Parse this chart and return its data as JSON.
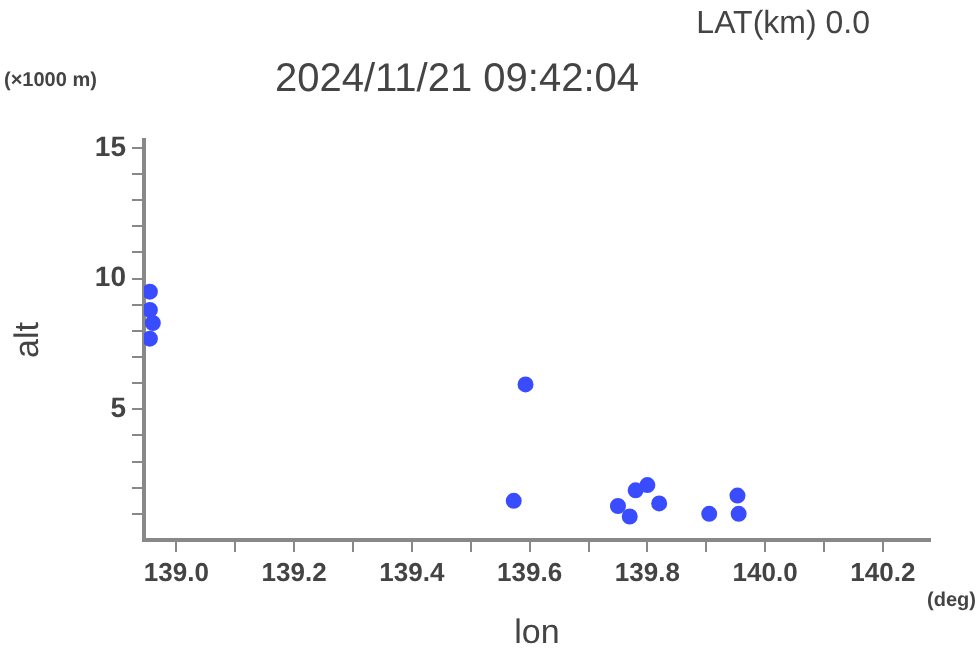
{
  "chart_data": {
    "type": "scatter",
    "title": "2024/11/21 09:42:04",
    "subtitle": "LAT(km) 0.0",
    "xlabel": "lon",
    "ylabel": "alt",
    "annotations": [
      "(×1000 m)",
      "(deg)"
    ],
    "x": [
      138.955,
      138.955,
      138.96,
      138.955,
      139.593,
      139.573,
      139.75,
      139.78,
      139.8,
      139.82,
      139.77,
      139.905,
      139.953,
      139.955
    ],
    "series": [
      {
        "color": "#3a4cff",
        "values": [
          9.5,
          8.8,
          8.3,
          7.7,
          5.95,
          1.5,
          1.3,
          1.9,
          2.1,
          1.4,
          0.9,
          1.0,
          1.7,
          1.0
        ]
      }
    ],
    "xlim": [
      138.945,
      140.28
    ],
    "ylim": [
      0,
      15.3
    ],
    "xticks": [
      {
        "value": 139.0,
        "label": "139.0"
      },
      {
        "value": 139.1,
        "label": null
      },
      {
        "value": 139.2,
        "label": "139.2"
      },
      {
        "value": 139.3,
        "label": null
      },
      {
        "value": 139.4,
        "label": "139.4"
      },
      {
        "value": 139.5,
        "label": null
      },
      {
        "value": 139.6,
        "label": "139.6"
      },
      {
        "value": 139.7,
        "label": null
      },
      {
        "value": 139.8,
        "label": "139.8"
      },
      {
        "value": 139.9,
        "label": null
      },
      {
        "value": 140.0,
        "label": "140.0"
      },
      {
        "value": 140.1,
        "label": null
      },
      {
        "value": 140.2,
        "label": "140.2"
      }
    ],
    "yticks": [
      {
        "value": 1,
        "label": null
      },
      {
        "value": 2,
        "label": null
      },
      {
        "value": 3,
        "label": null
      },
      {
        "value": 4,
        "label": null
      },
      5,
      {
        "value": 6,
        "label": null
      },
      {
        "value": 7,
        "label": null
      },
      {
        "value": 8,
        "label": null
      },
      {
        "value": 9,
        "label": null
      },
      10,
      {
        "value": 11,
        "label": null
      },
      {
        "value": 12,
        "label": null
      },
      {
        "value": 13,
        "label": null
      },
      {
        "value": 14,
        "label": null
      },
      15
    ],
    "grid": false,
    "legend": false,
    "marker": "circle"
  }
}
